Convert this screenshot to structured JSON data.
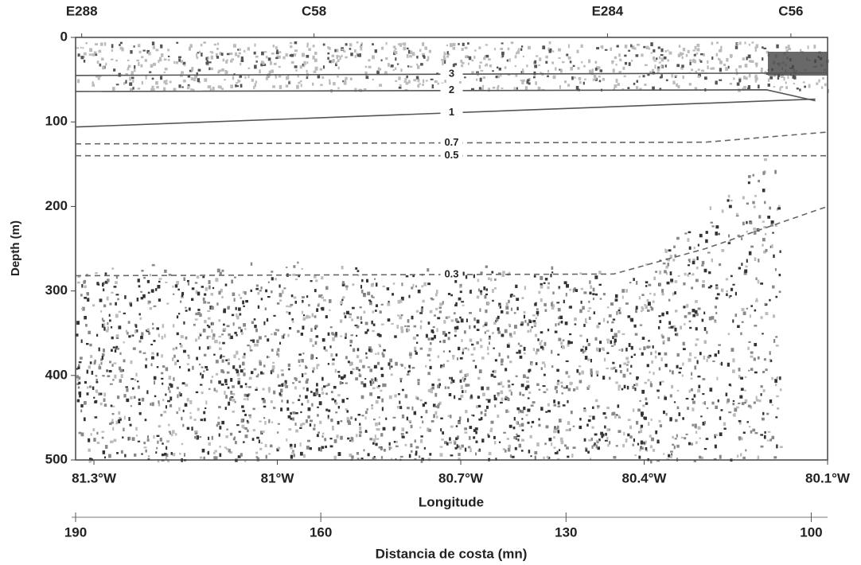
{
  "chart_data": {
    "type": "line",
    "x_label": "Longitude",
    "y_label": "Depth (m)",
    "x2_label": "Distancia de costa (mn)",
    "xlim": [
      81.33,
      80.1
    ],
    "xticks": [
      {
        "value": 81.3,
        "label": "81.3°W"
      },
      {
        "value": 81.0,
        "label": "81°W"
      },
      {
        "value": 80.7,
        "label": "80.7°W"
      },
      {
        "value": 80.4,
        "label": "80.4°W"
      },
      {
        "value": 80.1,
        "label": "80.1°W"
      }
    ],
    "ylim": [
      0,
      500
    ],
    "yticks": [
      0,
      100,
      200,
      300,
      400,
      500
    ],
    "x2lim": [
      190,
      98
    ],
    "x2ticks": [
      190,
      160,
      130,
      100
    ],
    "stations": [
      {
        "label": "E288",
        "x": 81.32
      },
      {
        "label": "C58",
        "x": 80.94
      },
      {
        "label": "E284",
        "x": 80.46
      },
      {
        "label": "C56",
        "x": 80.16
      }
    ],
    "series": [
      {
        "name": "3",
        "color": "#555555",
        "dash": false,
        "x": [
          81.33,
          80.1
        ],
        "values": [
          45,
          42
        ]
      },
      {
        "name": "2",
        "color": "#555555",
        "dash": false,
        "x": [
          81.33,
          80.2,
          80.12
        ],
        "values": [
          64,
          62,
          75
        ]
      },
      {
        "name": "1",
        "color": "#555555",
        "dash": false,
        "x": [
          81.33,
          80.12
        ],
        "values": [
          106,
          73
        ]
      },
      {
        "name": "0.7",
        "color": "#666666",
        "dash": true,
        "x": [
          81.33,
          80.3,
          80.1
        ],
        "values": [
          126,
          124,
          112
        ]
      },
      {
        "name": "0.5",
        "color": "#666666",
        "dash": true,
        "x": [
          81.33,
          80.1
        ],
        "values": [
          140,
          140
        ]
      },
      {
        "name": "0.3",
        "color": "#666666",
        "dash": true,
        "x": [
          81.33,
          80.45,
          80.3,
          80.1
        ],
        "values": [
          282,
          280,
          250,
          200
        ]
      }
    ]
  }
}
